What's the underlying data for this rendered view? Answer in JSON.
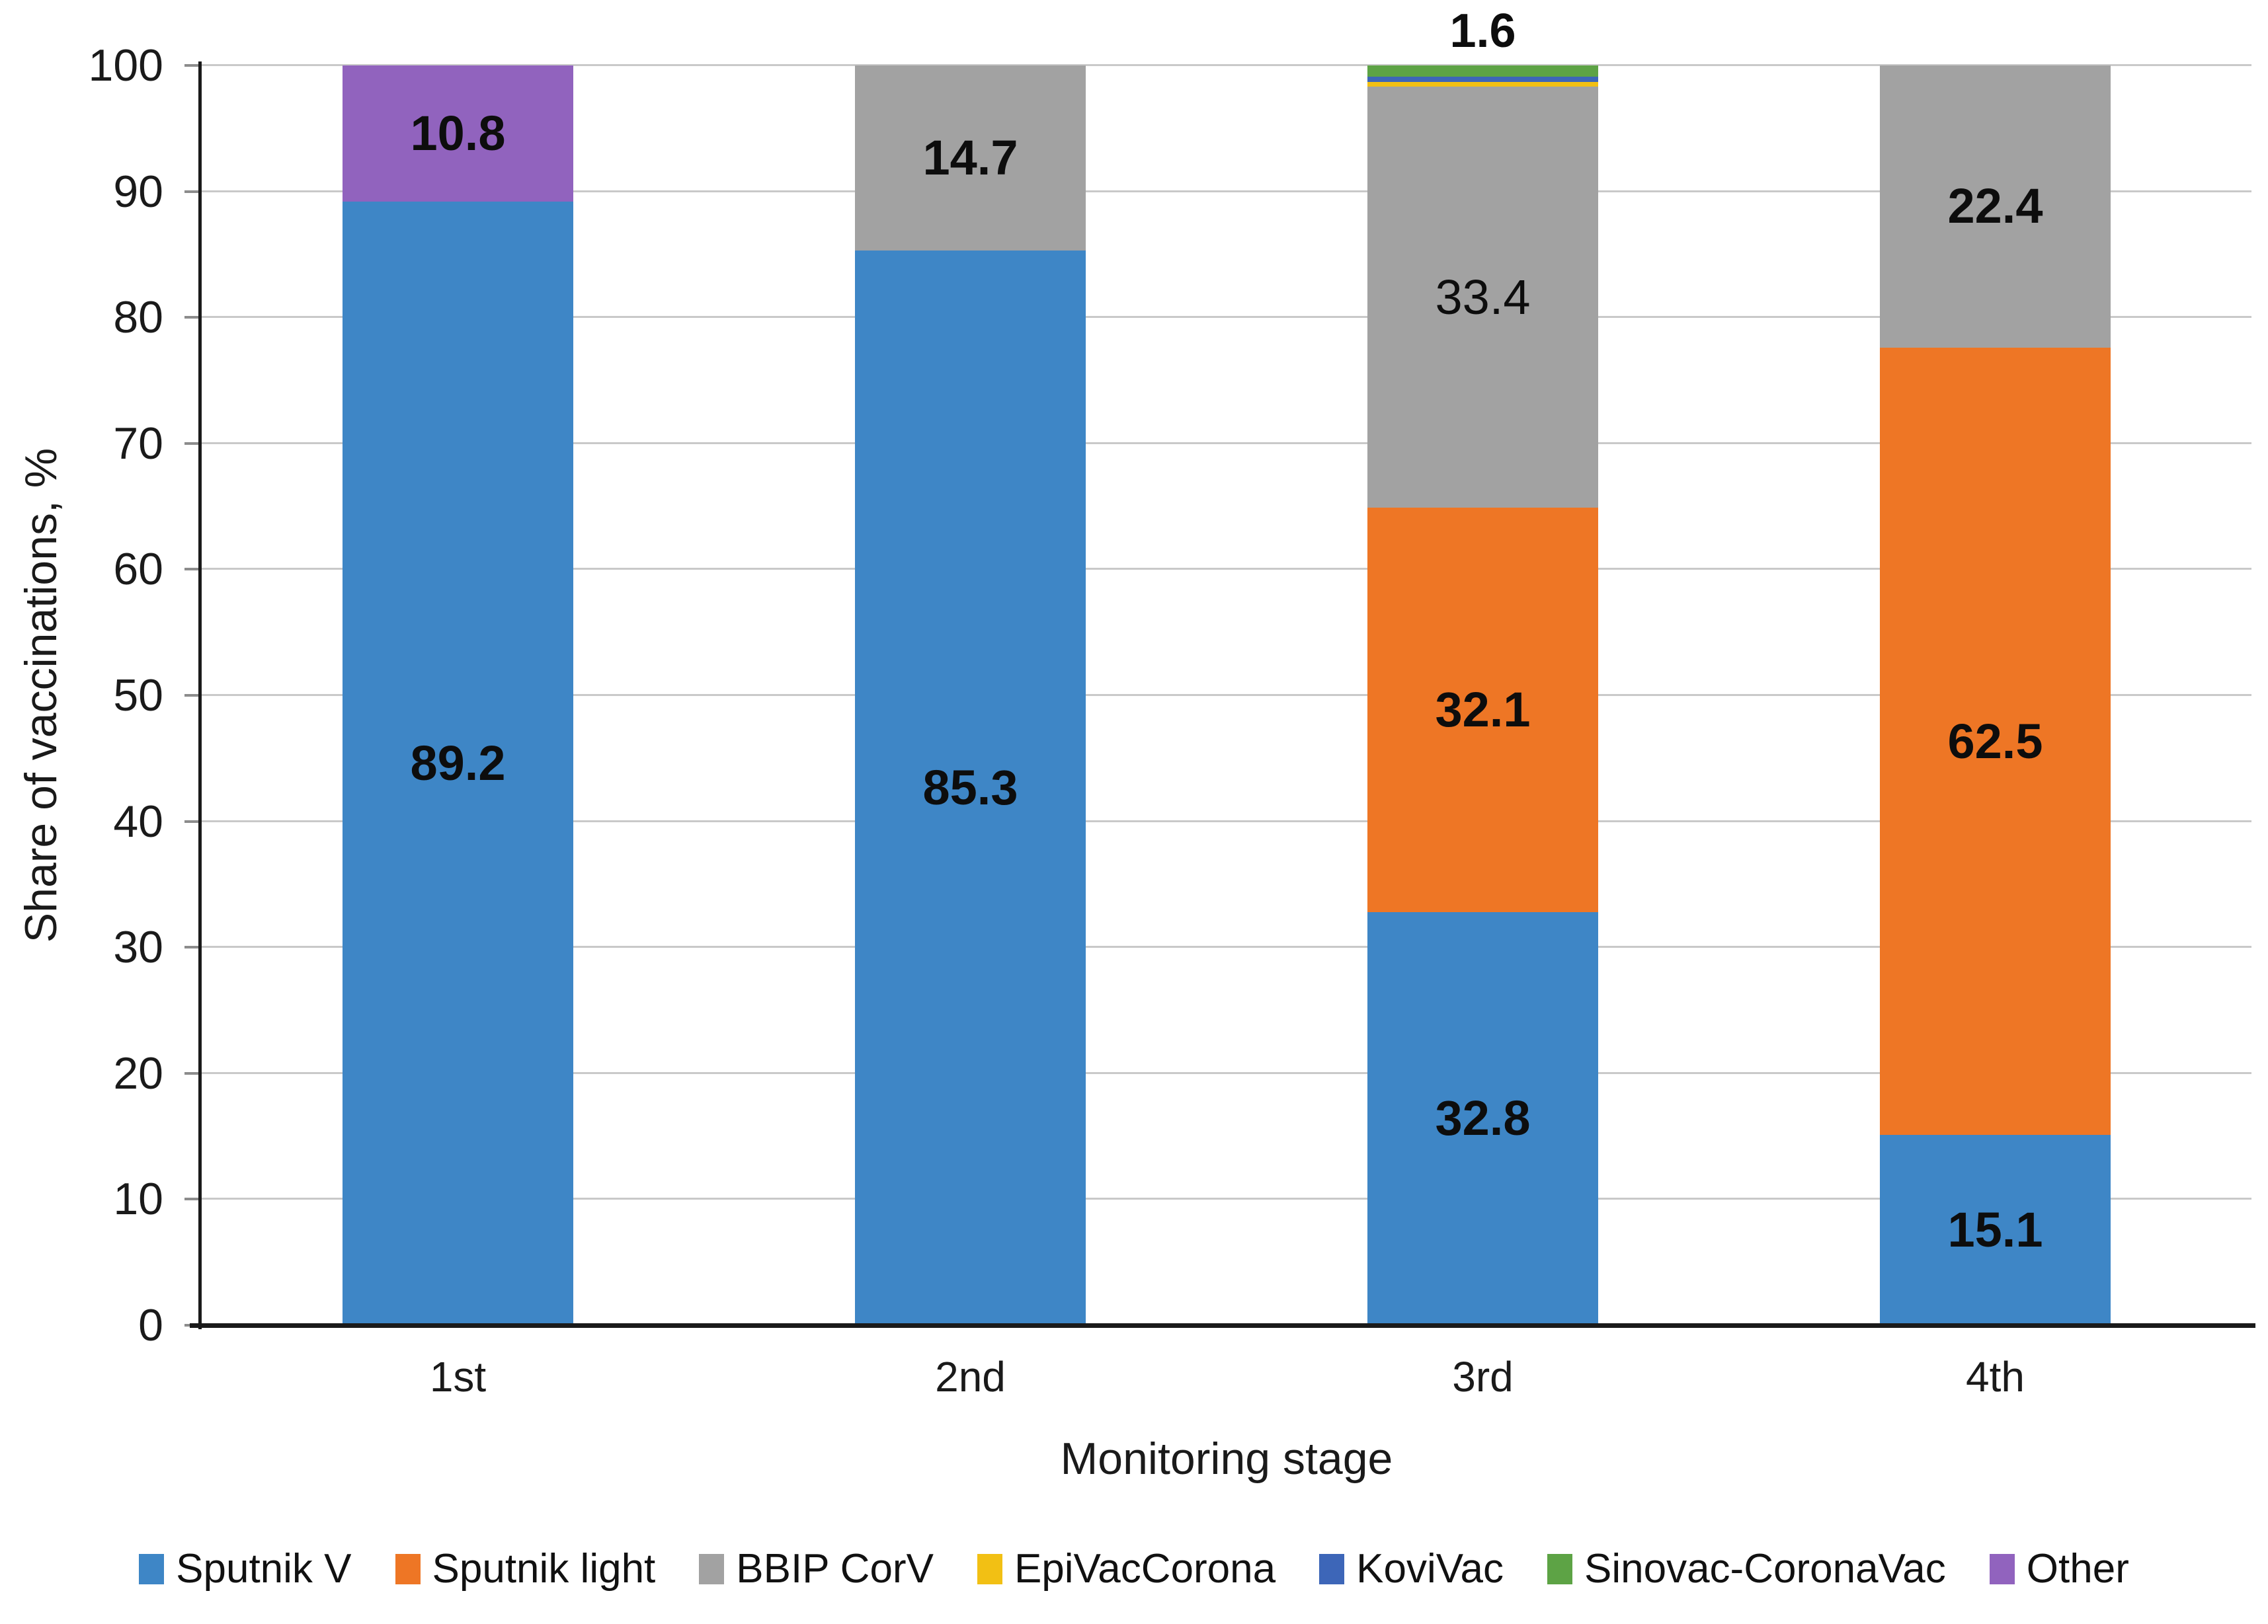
{
  "chart_data": {
    "type": "bar",
    "stacked": true,
    "orientation": "vertical",
    "xlabel": "Monitoring stage",
    "ylabel": "Share of vaccinations, %",
    "ylim": [
      0,
      100
    ],
    "y_ticks": [
      0,
      10,
      20,
      30,
      40,
      50,
      60,
      70,
      80,
      90,
      100
    ],
    "grid": "horizontal",
    "legend_position": "bottom",
    "categories": [
      "1st",
      "2nd",
      "3rd",
      "4th"
    ],
    "series": [
      {
        "name": "Sputnik V",
        "color": "#3E86C6",
        "values": [
          89.2,
          85.3,
          32.8,
          15.1
        ],
        "data_labels": [
          "89.2",
          "85.3",
          "32.8",
          "15.1"
        ]
      },
      {
        "name": "Sputnik light",
        "color": "#EE7625",
        "values": [
          0,
          0,
          32.1,
          62.5
        ],
        "data_labels": [
          "",
          "",
          "32.1",
          "62.5"
        ]
      },
      {
        "name": "BBIP CorV",
        "color": "#A2A2A2",
        "values": [
          0,
          14.7,
          33.4,
          22.4
        ],
        "data_labels": [
          "",
          "14.7",
          "33.4",
          "22.4"
        ]
      },
      {
        "name": "EpiVacCorona",
        "color": "#F2C014",
        "values": [
          0,
          0,
          0.4,
          0
        ],
        "data_labels": [
          "",
          "",
          "",
          ""
        ]
      },
      {
        "name": "KoviVac",
        "color": "#3D66B8",
        "values": [
          0,
          0,
          0.4,
          0
        ],
        "data_labels": [
          "",
          "",
          "",
          ""
        ]
      },
      {
        "name": "Sinovac-CoronaVac",
        "color": "#5DA345",
        "values": [
          0,
          0,
          0.9,
          0
        ],
        "data_labels": [
          "",
          "",
          "",
          ""
        ]
      },
      {
        "name": "Other",
        "color": "#9163BE",
        "values": [
          10.8,
          0,
          0,
          0
        ],
        "data_labels": [
          "10.8",
          "",
          "",
          ""
        ]
      }
    ],
    "regular_weight_labels": [
      "33.4"
    ],
    "annotations": [
      {
        "text": "1.6",
        "category": "3rd",
        "position": "above-bar"
      }
    ],
    "colors": {
      "axis": "#1a1a1a",
      "gridline": "#c9c9c9",
      "tick_mark": "#8c8c8c",
      "data_label": "#0d0d0d",
      "background": "#ffffff"
    }
  }
}
